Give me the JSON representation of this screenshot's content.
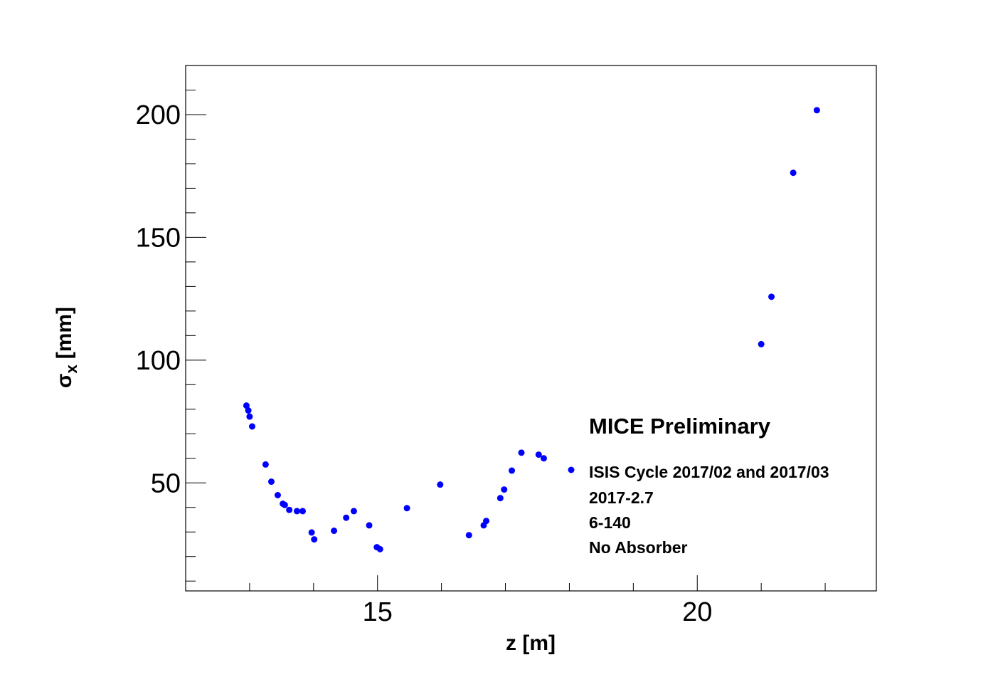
{
  "chart_data": {
    "type": "scatter",
    "xlabel": "z [m]",
    "ylabel_main": "σ",
    "ylabel_sub": "x",
    "ylabel_unit": "[mm]",
    "xlim": [
      12.0,
      22.8
    ],
    "ylim": [
      6,
      220
    ],
    "x_major_ticks": [
      15,
      20
    ],
    "x_tick_step_minor": 1,
    "y_major_ticks": [
      50,
      100,
      150,
      200
    ],
    "y_tick_step_minor": 10,
    "marker_color": "#0000ff",
    "grid": false,
    "legend": {
      "placement": "bottom-right",
      "header": "MICE Preliminary",
      "entries": [
        "ISIS Cycle 2017/02 and 2017/03",
        "2017-2.7",
        "6-140",
        "No Absorber"
      ]
    },
    "series": [
      {
        "points": [
          [
            12.95,
            81.5
          ],
          [
            12.98,
            79.5
          ],
          [
            13.0,
            77.0
          ],
          [
            13.04,
            73.0
          ],
          [
            13.25,
            57.5
          ],
          [
            13.34,
            50.5
          ],
          [
            13.44,
            45.0
          ],
          [
            13.52,
            41.5
          ],
          [
            13.55,
            41.0
          ],
          [
            13.62,
            39.0
          ],
          [
            13.74,
            38.5
          ],
          [
            13.83,
            38.5
          ],
          [
            13.97,
            29.8
          ],
          [
            14.01,
            27.0
          ],
          [
            14.32,
            30.5
          ],
          [
            14.51,
            35.8
          ],
          [
            14.63,
            38.5
          ],
          [
            14.87,
            32.7
          ],
          [
            14.99,
            23.8
          ],
          [
            15.04,
            23.0
          ],
          [
            15.46,
            39.7
          ],
          [
            15.98,
            49.3
          ],
          [
            16.43,
            28.7
          ],
          [
            16.66,
            32.7
          ],
          [
            16.7,
            34.5
          ],
          [
            16.92,
            43.8
          ],
          [
            16.98,
            47.3
          ],
          [
            17.1,
            55.0
          ],
          [
            17.25,
            62.3
          ],
          [
            17.52,
            61.5
          ],
          [
            17.6,
            60.0
          ],
          [
            21.0,
            106.5
          ],
          [
            21.16,
            125.8
          ],
          [
            21.5,
            176.3
          ],
          [
            21.87,
            201.8
          ]
        ]
      }
    ]
  }
}
